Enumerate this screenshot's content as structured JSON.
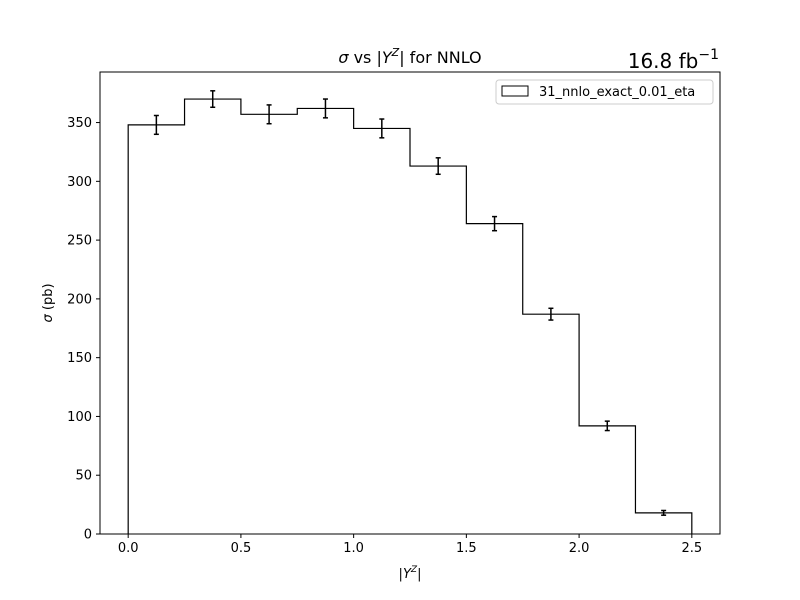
{
  "chart_data": {
    "type": "histogram",
    "title": "σ vs |Y^Z| for NNLO",
    "title_parts": {
      "sigma": "σ",
      "vs": " vs |",
      "Y": "Y",
      "sup": "Z",
      "rest": "| for NNLO"
    },
    "luminosity": {
      "value": "16.8 fb",
      "sup": "−1"
    },
    "xlabel": {
      "pre": "|",
      "Y": "Y",
      "sup": "Z",
      "post": "|"
    },
    "ylabel": {
      "sigma": "σ",
      "rest": " (pb)"
    },
    "xlim": [
      -0.125,
      2.625
    ],
    "ylim": [
      0,
      393
    ],
    "x_ticks": [
      0.0,
      0.5,
      1.0,
      1.5,
      2.0,
      2.5
    ],
    "x_tick_labels": [
      "0.0",
      "0.5",
      "1.0",
      "1.5",
      "2.0",
      "2.5"
    ],
    "y_ticks": [
      0,
      50,
      100,
      150,
      200,
      250,
      300,
      350
    ],
    "y_tick_labels": [
      "0",
      "50",
      "100",
      "150",
      "200",
      "250",
      "300",
      "350"
    ],
    "bin_edges": [
      0.0,
      0.25,
      0.5,
      0.75,
      1.0,
      1.25,
      1.5,
      1.75,
      2.0,
      2.25,
      2.5
    ],
    "series": [
      {
        "name": "31_nnlo_exact_0.01_eta",
        "values": [
          348,
          370,
          357,
          362,
          345,
          313,
          264,
          187,
          92,
          18
        ],
        "errors": [
          8,
          7,
          8,
          8,
          8,
          7,
          6,
          5,
          4,
          2
        ]
      }
    ],
    "legend_position": "top-right",
    "grid": false,
    "colors": {
      "line": "#000000",
      "background": "#ffffff"
    }
  }
}
